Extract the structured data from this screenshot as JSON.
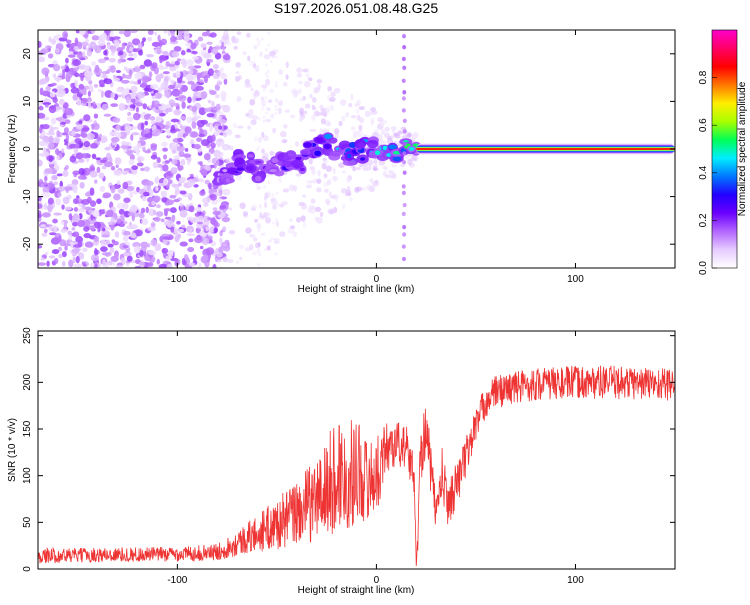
{
  "figure_title": "S197.2026.051.08.48.G25",
  "chart_data": [
    {
      "type": "heatmap",
      "title": "S197.2026.051.08.48.G25",
      "xlabel": "Height of straight line (km)",
      "ylabel": "Frequency (Hz)",
      "xlim": [
        -170,
        150
      ],
      "ylim": [
        -25,
        25
      ],
      "xticks": [
        -100,
        0,
        100
      ],
      "yticks": [
        -20,
        -10,
        0,
        10,
        20
      ],
      "colorbar": {
        "label": "Normalized spectral amplitude",
        "range": [
          0,
          1
        ],
        "ticks": [
          0.0,
          0.2,
          0.4,
          0.6,
          0.8
        ],
        "tick_labels": [
          "0.0",
          "0.2",
          "0.4",
          "0.6",
          "0.8"
        ],
        "colormap": [
          "#ffffff",
          "#e6ccff",
          "#b366ff",
          "#6a00ff",
          "#2200ff",
          "#0077ff",
          "#00eeff",
          "#00ff55",
          "#aaff00",
          "#ffee00",
          "#ff7700",
          "#ff0000",
          "#ff0066",
          "#ff00cc"
        ]
      },
      "features": {
        "noise_region_x": [
          -170,
          -80
        ],
        "transition_region_x": [
          -80,
          20
        ],
        "tone_region_x": [
          20,
          150
        ],
        "tone_frequency": 0,
        "tone_amplitude": 0.85,
        "spike_x": 14
      },
      "ridge_points": {
        "x": [
          -80,
          -75,
          -70,
          -65,
          -60,
          -55,
          -50,
          -45,
          -40,
          -35,
          -30,
          -25,
          -20,
          -15,
          -10,
          -5,
          0,
          5,
          10,
          15,
          20
        ],
        "y": [
          -7,
          -6,
          -3,
          -1,
          -5,
          -3,
          -4,
          -2,
          -4,
          -1,
          0,
          1,
          0,
          -1,
          -1,
          0,
          0,
          0,
          -1,
          0,
          0
        ],
        "amplitude": [
          0.1,
          0.2,
          0.3,
          0.25,
          0.2,
          0.25,
          0.2,
          0.3,
          0.25,
          0.3,
          0.35,
          0.4,
          0.45,
          0.5,
          0.45,
          0.5,
          0.55,
          0.6,
          0.55,
          0.6,
          0.7
        ]
      }
    },
    {
      "type": "line",
      "xlabel": "Height of straight line (km)",
      "ylabel": "SNR (10 * v/v)",
      "xlim": [
        -170,
        150
      ],
      "ylim": [
        0,
        255
      ],
      "xticks": [
        -100,
        0,
        100
      ],
      "yticks": [
        0,
        50,
        100,
        150,
        200,
        250
      ],
      "color": "#ee3333",
      "envelope": {
        "x": [
          -170,
          -140,
          -100,
          -80,
          -70,
          -60,
          -50,
          -40,
          -30,
          -25,
          -22,
          -18,
          -15,
          -10,
          -5,
          0,
          5,
          10,
          15,
          19,
          20,
          21,
          22,
          24,
          26,
          28,
          30,
          33,
          36,
          40,
          45,
          50,
          55,
          60,
          70,
          80,
          100,
          120,
          150
        ],
        "mean": [
          14,
          15,
          16,
          18,
          28,
          38,
          48,
          60,
          75,
          85,
          95,
          105,
          95,
          110,
          95,
          100,
          130,
          135,
          130,
          100,
          3,
          40,
          120,
          150,
          130,
          95,
          60,
          100,
          70,
          90,
          120,
          155,
          180,
          190,
          195,
          198,
          200,
          200,
          198
        ],
        "spread": [
          8,
          8,
          8,
          9,
          14,
          20,
          28,
          35,
          45,
          55,
          60,
          65,
          55,
          60,
          45,
          40,
          30,
          25,
          25,
          20,
          3,
          15,
          30,
          40,
          30,
          25,
          20,
          30,
          25,
          25,
          22,
          20,
          18,
          18,
          18,
          18,
          18,
          18,
          18
        ]
      }
    }
  ]
}
